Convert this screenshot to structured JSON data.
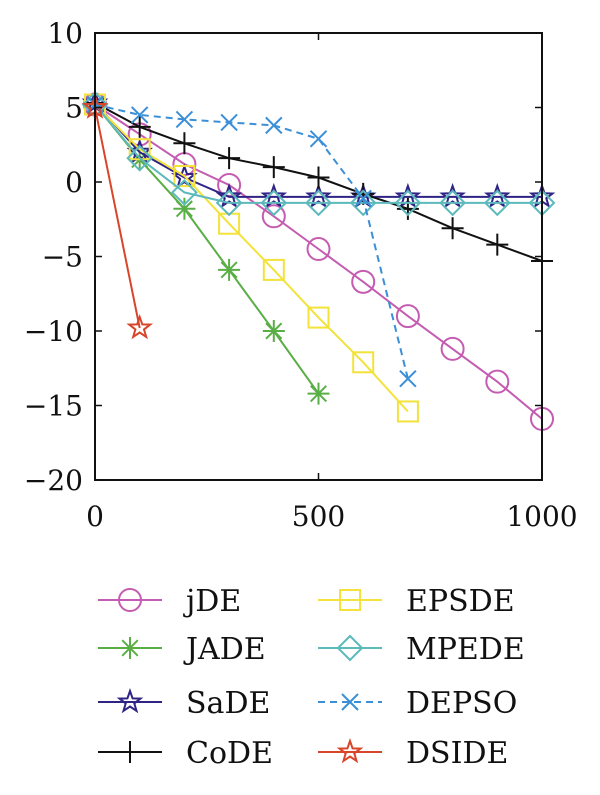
{
  "chart_data": {
    "type": "line",
    "title": "",
    "xlabel": "",
    "ylabel": "",
    "xlim": [
      0,
      1000
    ],
    "ylim": [
      -20,
      10
    ],
    "xticks": [
      0,
      500,
      1000
    ],
    "yticks": [
      10,
      5,
      0,
      -5,
      -10,
      -15,
      -20
    ],
    "xtick_labels": [
      "0",
      "500",
      "1000"
    ],
    "ytick_labels": [
      "10",
      "5",
      "0",
      "−5",
      "−10",
      "−15",
      "−20"
    ],
    "grid": false,
    "legend_position": "bottom",
    "series": [
      {
        "name": "jDE",
        "color": "#c45cb1",
        "marker": "circle",
        "dash": "solid",
        "x": [
          0,
          100,
          200,
          300,
          400,
          500,
          600,
          700,
          800,
          900,
          1000
        ],
        "y": [
          5.2,
          3.2,
          1.2,
          -0.2,
          -2.3,
          -4.5,
          -6.7,
          -9.0,
          -11.2,
          -13.4,
          -15.9
        ]
      },
      {
        "name": "JADE",
        "color": "#5aae46",
        "marker": "asterisk",
        "dash": "solid",
        "x": [
          0,
          100,
          200,
          300,
          400,
          500
        ],
        "y": [
          5.2,
          1.5,
          -1.8,
          -5.9,
          -10.0,
          -14.2
        ]
      },
      {
        "name": "SaDE",
        "color": "#2f2486",
        "marker": "star",
        "dash": "solid",
        "x": [
          0,
          100,
          200,
          300,
          400,
          500,
          600,
          700,
          800,
          900,
          1000
        ],
        "y": [
          5.3,
          2.0,
          0.3,
          -1.0,
          -1.0,
          -1.0,
          -1.0,
          -1.0,
          -1.0,
          -1.0,
          -1.0
        ]
      },
      {
        "name": "CoDE",
        "color": "#111111",
        "marker": "plus",
        "dash": "solid",
        "x": [
          0,
          100,
          200,
          300,
          400,
          500,
          600,
          700,
          800,
          900,
          1000
        ],
        "y": [
          5.3,
          3.7,
          2.6,
          1.6,
          1.0,
          0.3,
          -0.8,
          -1.8,
          -3.1,
          -4.2,
          -5.3
        ]
      },
      {
        "name": "EPSDE",
        "color": "#f3e23a",
        "marker": "square",
        "dash": "solid",
        "x": [
          0,
          100,
          200,
          300,
          400,
          500,
          600,
          700
        ],
        "y": [
          5.2,
          2.2,
          0.4,
          -2.8,
          -5.9,
          -9.1,
          -12.1,
          -15.4
        ]
      },
      {
        "name": "MPEDE",
        "color": "#5cb9bc",
        "marker": "diamond",
        "dash": "solid",
        "x": [
          0,
          100,
          200,
          300,
          400,
          500,
          600,
          700,
          800,
          900,
          1000
        ],
        "y": [
          5.2,
          1.6,
          -0.7,
          -1.4,
          -1.4,
          -1.4,
          -1.4,
          -1.4,
          -1.4,
          -1.4,
          -1.4
        ]
      },
      {
        "name": "DEPSO",
        "color": "#3b8fd6",
        "marker": "x",
        "dash": "dashed",
        "x": [
          0,
          100,
          200,
          300,
          400,
          500,
          600,
          700
        ],
        "y": [
          5.2,
          4.5,
          4.2,
          4.0,
          3.8,
          2.9,
          -1.1,
          -13.2
        ]
      },
      {
        "name": "DSIDE",
        "color": "#d8452a",
        "marker": "star",
        "dash": "solid",
        "x": [
          0,
          100
        ],
        "y": [
          5.0,
          -9.8
        ]
      }
    ]
  }
}
